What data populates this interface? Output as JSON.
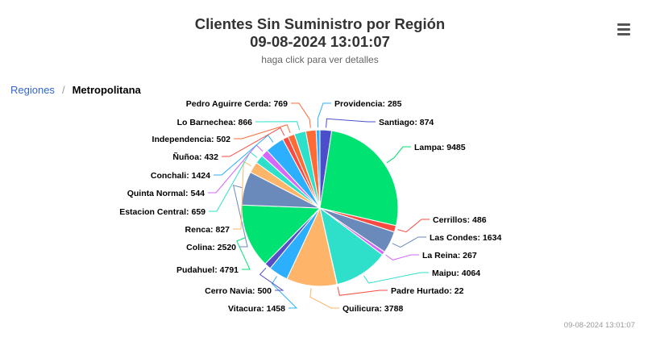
{
  "header": {
    "title_line1": "Clientes Sin Suministro por Región",
    "title_line2": "09-08-2024 13:01:07",
    "subtitle": "haga click para ver detalles"
  },
  "menu": {
    "icon": "hamburger-menu-icon"
  },
  "breadcrumb": {
    "link": "Regiones",
    "separator": "/",
    "current": "Metropolitana"
  },
  "footer": {
    "timestamp": "09-08-2024 13:01:07"
  },
  "chart_data": {
    "type": "pie",
    "title": "Clientes Sin Suministro por Región",
    "subtitle": "haga click para ver detalles",
    "slices": [
      {
        "name": "Santiago",
        "value": 874,
        "color": "#4a4fc9"
      },
      {
        "name": "Lampa",
        "value": 9485,
        "color": "#00e272"
      },
      {
        "name": "Cerrillos",
        "value": 486,
        "color": "#fa4b42"
      },
      {
        "name": "Las Condes",
        "value": 1634,
        "color": "#6b8abc"
      },
      {
        "name": "La Reina",
        "value": 267,
        "color": "#d568fb"
      },
      {
        "name": "Maipu",
        "value": 4064,
        "color": "#2ee0ca"
      },
      {
        "name": "Padre Hurtado",
        "value": 22,
        "color": "#fa4b42"
      },
      {
        "name": "Quilicura",
        "value": 3788,
        "color": "#feb56a"
      },
      {
        "name": "Vitacura",
        "value": 1458,
        "color": "#2caffe"
      },
      {
        "name": "Cerro Navia",
        "value": 500,
        "color": "#544fc5"
      },
      {
        "name": "Pudahuel",
        "value": 4791,
        "color": "#00e272"
      },
      {
        "name": "Colina",
        "value": 2520,
        "color": "#6b8abc"
      },
      {
        "name": "Renca",
        "value": 827,
        "color": "#feb56a"
      },
      {
        "name": "Estacion Central",
        "value": 659,
        "color": "#2ee0ca"
      },
      {
        "name": "Quinta Normal",
        "value": 544,
        "color": "#d568fb"
      },
      {
        "name": "Conchali",
        "value": 1424,
        "color": "#2caffe"
      },
      {
        "name": "Ñuñoa",
        "value": 432,
        "color": "#fa4b42"
      },
      {
        "name": "Independencia",
        "value": 502,
        "color": "#fe6a35"
      },
      {
        "name": "Lo Barnechea",
        "value": 866,
        "color": "#2ee0ca"
      },
      {
        "name": "Pedro Aguirre Cerda",
        "value": 769,
        "color": "#fe6a35"
      },
      {
        "name": "Providencia",
        "value": 285,
        "color": "#2caffe"
      }
    ]
  }
}
